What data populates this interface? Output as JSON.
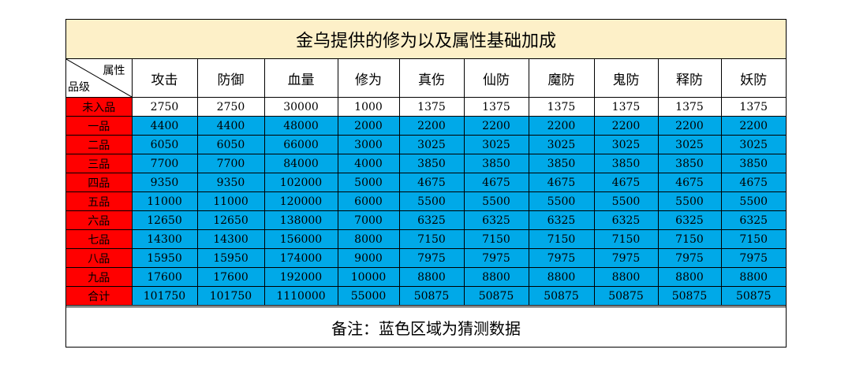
{
  "title": "金乌提供的修为以及属性基础加成",
  "corner": {
    "top": "属性",
    "bottom": "品级"
  },
  "columns": [
    "攻击",
    "防御",
    "血量",
    "修为",
    "真伤",
    "仙防",
    "魔防",
    "鬼防",
    "释防",
    "妖防"
  ],
  "rows": [
    {
      "grade": "未入品",
      "values": [
        "2750",
        "2750",
        "30000",
        "1000",
        "1375",
        "1375",
        "1375",
        "1375",
        "1375",
        "1375"
      ],
      "fill": "white"
    },
    {
      "grade": "一品",
      "values": [
        "4400",
        "4400",
        "48000",
        "2000",
        "2200",
        "2200",
        "2200",
        "2200",
        "2200",
        "2200"
      ],
      "fill": "blue"
    },
    {
      "grade": "二品",
      "values": [
        "6050",
        "6050",
        "66000",
        "3000",
        "3025",
        "3025",
        "3025",
        "3025",
        "3025",
        "3025"
      ],
      "fill": "blue"
    },
    {
      "grade": "三品",
      "values": [
        "7700",
        "7700",
        "84000",
        "4000",
        "3850",
        "3850",
        "3850",
        "3850",
        "3850",
        "3850"
      ],
      "fill": "blue"
    },
    {
      "grade": "四品",
      "values": [
        "9350",
        "9350",
        "102000",
        "5000",
        "4675",
        "4675",
        "4675",
        "4675",
        "4675",
        "4675"
      ],
      "fill": "blue"
    },
    {
      "grade": "五品",
      "values": [
        "11000",
        "11000",
        "120000",
        "6000",
        "5500",
        "5500",
        "5500",
        "5500",
        "5500",
        "5500"
      ],
      "fill": "blue"
    },
    {
      "grade": "六品",
      "values": [
        "12650",
        "12650",
        "138000",
        "7000",
        "6325",
        "6325",
        "6325",
        "6325",
        "6325",
        "6325"
      ],
      "fill": "blue"
    },
    {
      "grade": "七品",
      "values": [
        "14300",
        "14300",
        "156000",
        "8000",
        "7150",
        "7150",
        "7150",
        "7150",
        "7150",
        "7150"
      ],
      "fill": "blue"
    },
    {
      "grade": "八品",
      "values": [
        "15950",
        "15950",
        "174000",
        "9000",
        "7975",
        "7975",
        "7975",
        "7975",
        "7975",
        "7975"
      ],
      "fill": "blue"
    },
    {
      "grade": "九品",
      "values": [
        "17600",
        "17600",
        "192000",
        "10000",
        "8800",
        "8800",
        "8800",
        "8800",
        "8800",
        "8800"
      ],
      "fill": "blue"
    },
    {
      "grade": "合计",
      "values": [
        "101750",
        "101750",
        "1110000",
        "55000",
        "50875",
        "50875",
        "50875",
        "50875",
        "50875",
        "50875"
      ],
      "fill": "blue"
    }
  ],
  "note": "备注：蓝色区域为猜测数据",
  "colors": {
    "title_bg": "#fdf0c8",
    "grade_bg": "#ff0000",
    "blue_bg": "#00a9e8"
  }
}
